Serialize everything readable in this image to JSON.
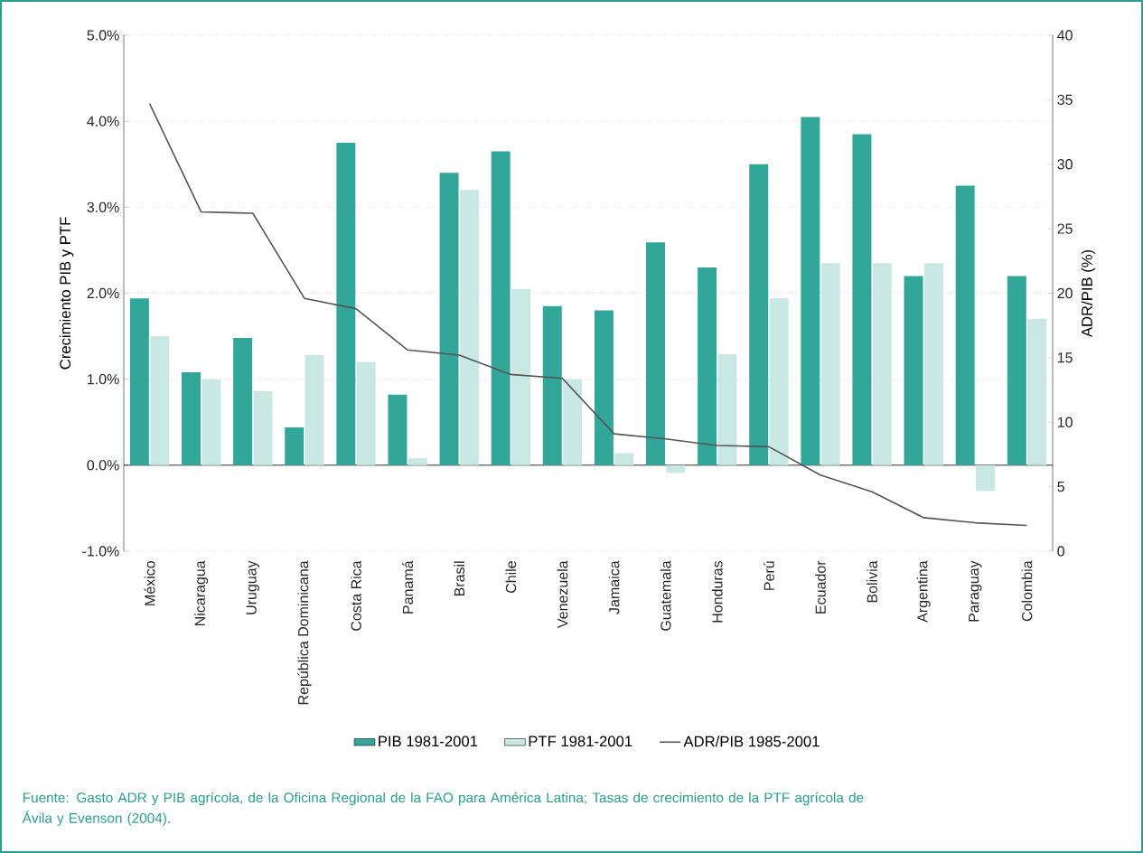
{
  "chart_data": {
    "type": "bar",
    "categories": [
      "México",
      "Nicaragua",
      "Uruguay",
      "República Dominicana",
      "Costa Rica",
      "Panamá",
      "Brasil",
      "Chile",
      "Venezuela",
      "Jamaica",
      "Guatemala",
      "Honduras",
      "Perú",
      "Ecuador",
      "Bolivia",
      "Argentina",
      "Paraguay",
      "Colombia"
    ],
    "series": [
      {
        "name": "PIB 1981-2001",
        "color": "#33a69a",
        "values": [
          1.94,
          1.08,
          1.48,
          0.44,
          3.75,
          0.82,
          3.4,
          3.65,
          1.85,
          1.8,
          2.59,
          2.3,
          3.5,
          4.05,
          3.85,
          2.2,
          3.25,
          2.2
        ]
      },
      {
        "name": "PTF 1981-2001",
        "color": "#c9e8e3",
        "values": [
          1.5,
          1.0,
          0.86,
          1.28,
          1.2,
          0.08,
          3.2,
          2.05,
          1.0,
          0.14,
          -0.09,
          1.29,
          1.94,
          2.35,
          2.35,
          2.35,
          -0.3,
          1.7
        ]
      },
      {
        "name": "ADR/PIB 1985-2001",
        "color": "#555555",
        "type": "line",
        "axis": "y2",
        "values": [
          34.7,
          26.3,
          26.2,
          19.6,
          18.8,
          15.6,
          15.2,
          13.7,
          13.4,
          9.1,
          8.7,
          8.2,
          8.1,
          5.9,
          4.6,
          2.6,
          2.2,
          2.0
        ]
      }
    ],
    "ylabel": "Crecimiento PIB y PTF",
    "y2label": "ADR/PIB (%)",
    "ylim": [
      -1,
      5
    ],
    "yticks": [
      {
        "value": -1,
        "label": "-1.0%"
      },
      {
        "value": 0,
        "label": "0.0%"
      },
      {
        "value": 1,
        "label": "1.0%"
      },
      {
        "value": 2,
        "label": "2.0%"
      },
      {
        "value": 3,
        "label": "3.0%"
      },
      {
        "value": 4,
        "label": "4.0%"
      },
      {
        "value": 5,
        "label": "5.0%"
      }
    ],
    "y2lim": [
      0,
      40
    ],
    "y2ticks": [
      0,
      5,
      10,
      15,
      20,
      25,
      30,
      35,
      40
    ],
    "grid": "y",
    "legend": "bottom",
    "marker": "none",
    "annotations": [
      "Fuente: Gasto ADR y PIB agrícola, de la Oficina Regional de la FAO para América Latina; Tasas de crecimiento de la PTF agrícola de Ávila y Evenson (2004)."
    ]
  }
}
